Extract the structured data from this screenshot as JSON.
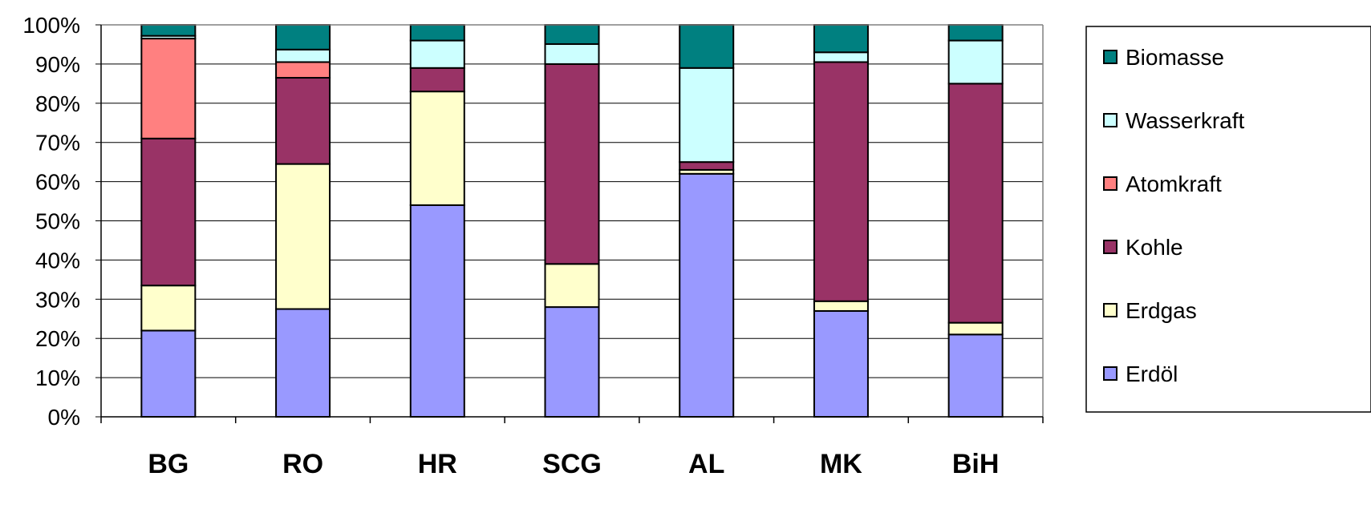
{
  "chart_data": {
    "type": "bar",
    "stacked": true,
    "percent": true,
    "title": "",
    "xlabel": "",
    "ylabel": "",
    "ylim": [
      0,
      100
    ],
    "yticks": [
      "0%",
      "10%",
      "20%",
      "30%",
      "40%",
      "50%",
      "60%",
      "70%",
      "80%",
      "90%",
      "100%"
    ],
    "categories": [
      "BG",
      "RO",
      "HR",
      "SCG",
      "AL",
      "MK",
      "BiH"
    ],
    "series": [
      {
        "name": "Erdöl",
        "color": "#9999FF",
        "values": [
          22,
          27.5,
          54,
          28,
          62,
          27,
          21
        ]
      },
      {
        "name": "Erdgas",
        "color": "#FFFFCC",
        "values": [
          11.5,
          37,
          29,
          11,
          1,
          2.5,
          3
        ]
      },
      {
        "name": "Kohle",
        "color": "#993366",
        "values": [
          37.5,
          22,
          6,
          51,
          2,
          61,
          61
        ]
      },
      {
        "name": "Atomkraft",
        "color": "#FF8080",
        "values": [
          25.5,
          4,
          0,
          0,
          0,
          0,
          0
        ]
      },
      {
        "name": "Wasserkraft",
        "color": "#CCFFFF",
        "values": [
          0.7,
          3.2,
          7,
          5.1,
          24,
          2.5,
          11
        ]
      },
      {
        "name": "Biomasse",
        "color": "#008080",
        "values": [
          2.8,
          6.3,
          4,
          4.9,
          11,
          7,
          4
        ]
      }
    ],
    "legend": {
      "placement": "right",
      "order": [
        "Biomasse",
        "Wasserkraft",
        "Atomkraft",
        "Kohle",
        "Erdgas",
        "Erdöl"
      ]
    },
    "grid": true
  }
}
